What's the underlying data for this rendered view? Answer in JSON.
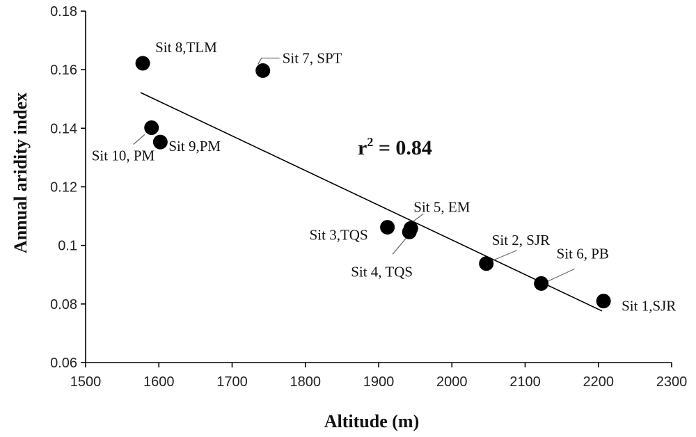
{
  "chart_data": {
    "type": "scatter",
    "title": "",
    "xlabel": "Altitude (m)",
    "ylabel": "Annual aridity index",
    "xlim": [
      1500,
      2300
    ],
    "ylim": [
      0.06,
      0.18
    ],
    "xticks": [
      1500,
      1600,
      1700,
      1800,
      1900,
      2000,
      2100,
      2200,
      2300
    ],
    "yticks": [
      0.06,
      0.08,
      0.1,
      0.12,
      0.14,
      0.16,
      0.18
    ],
    "ytick_labels": [
      "0.06",
      "0.08",
      "0.1",
      "0.12",
      "0.14",
      "0.16",
      "0.18"
    ],
    "grid": false,
    "points": [
      {
        "label": "Sit 8,TLM",
        "x": 1578,
        "y": 0.1622
      },
      {
        "label": "Sit 7, SPT",
        "x": 1742,
        "y": 0.1597
      },
      {
        "label": "Sit 10, PM",
        "x": 1590,
        "y": 0.1402
      },
      {
        "label": "Sit 9,PM",
        "x": 1602,
        "y": 0.1353
      },
      {
        "label": "Sit 3,TQS",
        "x": 1912,
        "y": 0.1062
      },
      {
        "label": "Sit 5, EM",
        "x": 1944,
        "y": 0.1058
      },
      {
        "label": "Sit 4, TQS",
        "x": 1942,
        "y": 0.1046
      },
      {
        "label": "Sit 2, SJR",
        "x": 2047,
        "y": 0.0938
      },
      {
        "label": "Sit 6, PB",
        "x": 2122,
        "y": 0.087
      },
      {
        "label": "Sit 1,SJR",
        "x": 2207,
        "y": 0.081
      }
    ],
    "trendline": {
      "x": [
        1575,
        2205
      ],
      "y": [
        0.1522,
        0.0776
      ]
    },
    "annotation": {
      "text_main": "r",
      "superscript": "2",
      "text_rest": " = 0.84"
    }
  }
}
